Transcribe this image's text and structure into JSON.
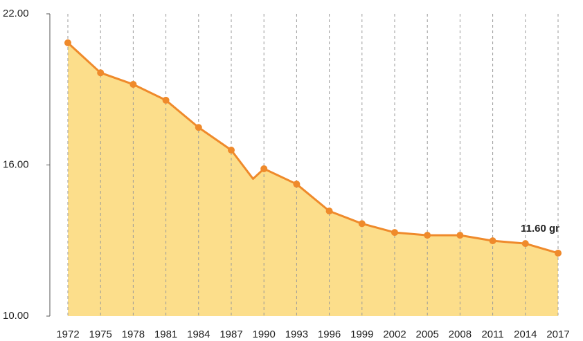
{
  "chart_data": {
    "type": "area",
    "x": [
      1972,
      1975,
      1978,
      1981,
      1984,
      1987,
      1989,
      1990,
      1993,
      1996,
      1999,
      2002,
      2005,
      2008,
      2011,
      2014,
      2017
    ],
    "values": [
      20.85,
      19.66,
      19.2,
      18.57,
      17.49,
      16.59,
      15.45,
      15.85,
      15.24,
      14.17,
      13.67,
      13.32,
      13.21,
      13.21,
      12.99,
      12.88,
      12.5
    ],
    "color": "#ef8a2b",
    "fill": "#fbd877",
    "xlim": [
      1972,
      2017
    ],
    "xticks": [
      1972,
      1975,
      1978,
      1981,
      1984,
      1987,
      1990,
      1993,
      1996,
      1999,
      2002,
      2005,
      2008,
      2011,
      2014,
      2017
    ],
    "ylim": [
      10,
      22
    ],
    "yticks": [
      {
        "value": 10,
        "label": "10.00"
      },
      {
        "value": 16,
        "label": "16.00"
      },
      {
        "value": 22,
        "label": "22.00"
      }
    ],
    "annotation": "11.60 gr",
    "grid": true
  }
}
